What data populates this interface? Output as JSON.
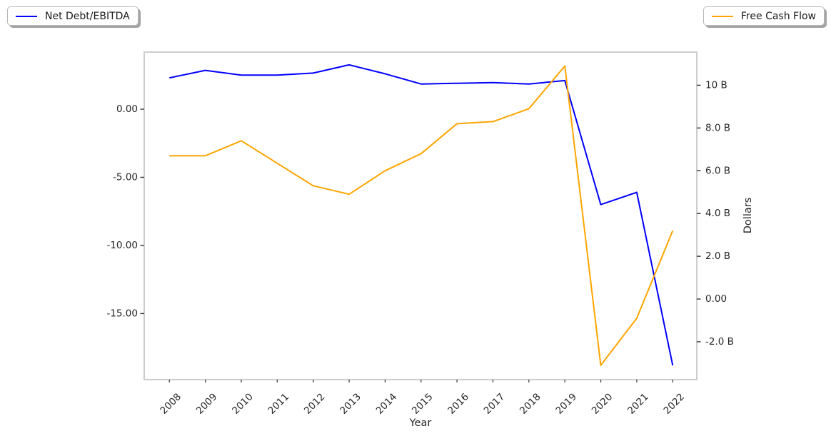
{
  "legends": [
    {
      "label": "Net Debt/EBITDA",
      "color": "#0000ff",
      "position": "upper left"
    },
    {
      "label": "Free Cash Flow",
      "color": "#ffa500",
      "position": "upper right"
    }
  ],
  "chart_data": {
    "type": "line",
    "title": "",
    "xlabel": "Year",
    "x": [
      2008,
      2009,
      2010,
      2011,
      2012,
      2013,
      2014,
      2015,
      2016,
      2017,
      2018,
      2019,
      2020,
      2021,
      2022
    ],
    "x_tick_labels": [
      "2008",
      "2009",
      "2010",
      "2011",
      "2012",
      "2013",
      "2014",
      "2015",
      "2016",
      "2017",
      "2018",
      "2019",
      "2020",
      "2021",
      "2022"
    ],
    "x_range": [
      2007.3,
      2022.67
    ],
    "series": [
      {
        "name": "Net Debt/EBITDA",
        "axis": "left",
        "color": "#0000ff",
        "values": [
          2.3,
          2.85,
          2.5,
          2.5,
          2.65,
          3.25,
          2.6,
          1.85,
          1.9,
          1.95,
          1.85,
          2.1,
          -7.0,
          -6.1,
          -18.8
        ]
      },
      {
        "name": "Free Cash Flow",
        "axis": "right",
        "color": "#ffa500",
        "values": [
          6.7,
          6.7,
          7.4,
          6.35,
          5.3,
          4.9,
          6.0,
          6.8,
          8.2,
          8.3,
          8.9,
          10.9,
          -3.1,
          -0.9,
          3.2
        ]
      }
    ],
    "left_axis": {
      "label": "",
      "tick_values": [
        0,
        -5,
        -10,
        -15
      ],
      "tick_labels": [
        "0.00",
        "-5.00",
        "-10.00",
        "-15.00"
      ],
      "range": [
        -19.85,
        4.19
      ]
    },
    "right_axis": {
      "label": "Dollars",
      "tick_values": [
        10,
        8,
        6,
        4,
        2,
        0,
        -2
      ],
      "tick_labels": [
        "10 B",
        "8.0 B",
        "6.0 B",
        "4.0 B",
        "2.0 B",
        "0.00",
        "-2.0 B"
      ],
      "range": [
        -3.77,
        11.55
      ]
    },
    "grid": false
  }
}
